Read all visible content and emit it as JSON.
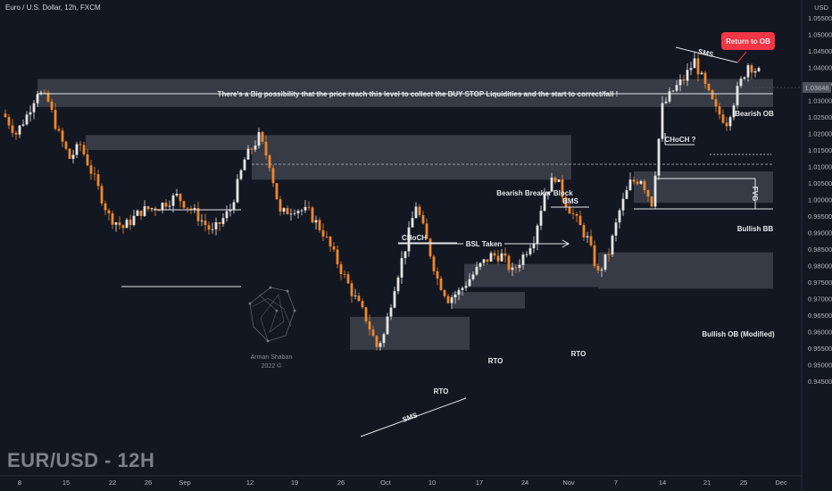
{
  "header": {
    "title": "Euro / U.S. Dollar, 12h, FXCM",
    "currency": "USD",
    "symbol_label": "EUR/USD - 12H"
  },
  "watermark": {
    "line1": "Arman Shaban",
    "line2": "2022 ©"
  },
  "colors": {
    "background": "#131722",
    "bull": "#e6e6e6",
    "bear": "#f0882b",
    "zone": "#545964",
    "badge": "#f23645",
    "price_label": "#4c525e"
  },
  "chart_data": {
    "type": "candlestick",
    "title": "Euro / U.S. Dollar, 12h, FXCM",
    "ylabel": "USD",
    "ylim": [
      0.9425,
      1.0575
    ],
    "yticks": [
      "1.05500",
      "1.05000",
      "1.04500",
      "1.04000",
      "1.03500",
      "1.03000",
      "1.02500",
      "1.02000",
      "1.01500",
      "1.01000",
      "1.00500",
      "1.00000",
      "0.99500",
      "0.99000",
      "0.98500",
      "0.98000",
      "0.97500",
      "0.97000",
      "0.96500",
      "0.96000",
      "0.95500",
      "0.95000",
      "0.94500"
    ],
    "xticks": [
      "8",
      "15",
      "22",
      "26",
      "Sep",
      "12",
      "19",
      "26",
      "Oct",
      "10",
      "17",
      "24",
      "Nov",
      "7",
      "14",
      "21",
      "25",
      "Dec"
    ],
    "last_price_label": "1.03848",
    "anchors": [
      [
        0,
        1.025
      ],
      [
        3,
        1.02
      ],
      [
        6,
        1.0255
      ],
      [
        9,
        1.033
      ],
      [
        12,
        1.0295
      ],
      [
        15,
        1.0195
      ],
      [
        18,
        1.0125
      ],
      [
        21,
        1.0165
      ],
      [
        25,
        1.006
      ],
      [
        29,
        0.995
      ],
      [
        33,
        0.9915
      ],
      [
        38,
        0.9965
      ],
      [
        43,
        0.998
      ],
      [
        48,
        1.001
      ],
      [
        53,
        0.996
      ],
      [
        58,
        0.99
      ],
      [
        63,
        0.997
      ],
      [
        67,
        1.012
      ],
      [
        71,
        1.019
      ],
      [
        74,
        1.011
      ],
      [
        77,
        0.9955
      ],
      [
        81,
        0.9975
      ],
      [
        85,
        0.996
      ],
      [
        89,
        0.99
      ],
      [
        93,
        0.981
      ],
      [
        97,
        0.972
      ],
      [
        101,
        0.964
      ],
      [
        104,
        0.9555
      ],
      [
        106,
        0.959
      ],
      [
        109,
        0.974
      ],
      [
        112,
        0.9855
      ],
      [
        115,
        0.9985
      ],
      [
        118,
        0.9875
      ],
      [
        121,
        0.976
      ],
      [
        124,
        0.97
      ],
      [
        127,
        0.972
      ],
      [
        130,
        0.976
      ],
      [
        133,
        0.98
      ],
      [
        136,
        0.983
      ],
      [
        139,
        0.983
      ],
      [
        142,
        0.978
      ],
      [
        145,
        0.983
      ],
      [
        148,
        0.9885
      ],
      [
        151,
        1.002
      ],
      [
        154,
        1.007
      ],
      [
        157,
        0.999
      ],
      [
        160,
        0.9935
      ],
      [
        163,
        0.988
      ],
      [
        166,
        0.9775
      ],
      [
        169,
        0.984
      ],
      [
        172,
        0.9965
      ],
      [
        175,
        1.005
      ],
      [
        178,
        1.0065
      ],
      [
        181,
        0.999
      ],
      [
        184,
        1.028
      ],
      [
        187,
        1.033
      ],
      [
        190,
        1.0365
      ],
      [
        193,
        1.042
      ],
      [
        196,
        1.034
      ],
      [
        199,
        1.027
      ],
      [
        202,
        1.0235
      ],
      [
        205,
        1.033
      ],
      [
        208,
        1.041
      ],
      [
        211,
        1.0385
      ]
    ],
    "zones": [
      {
        "label": "Bearish OB",
        "y": [
          1.028,
          1.0365
        ]
      },
      {
        "label": "Bearish Breaker Block",
        "y": [
          1.006,
          1.0195
        ]
      },
      {
        "label": "Bullish BB",
        "y": [
          0.999,
          1.0085
        ]
      },
      {
        "label": "Bullish OB (Modified)",
        "y": [
          0.973,
          0.984
        ]
      },
      {
        "label": "RTO",
        "y": [
          0.9545,
          0.9645
        ]
      }
    ],
    "annotations": [
      "There's a Big possibility that the price reach this level to collect the BUY STOP Liquidities and the start to correct/fall !",
      "Return to OB",
      "SMS",
      "Bearish OB",
      "CHoCH ?",
      "FVG",
      "Bearish Breaker Block",
      "BMS",
      "Bullish BB",
      "CHoCH",
      "BSL Taken",
      "Bullish OB (Modified)",
      "RTO",
      "RTO",
      "RTO",
      "SMS"
    ]
  }
}
